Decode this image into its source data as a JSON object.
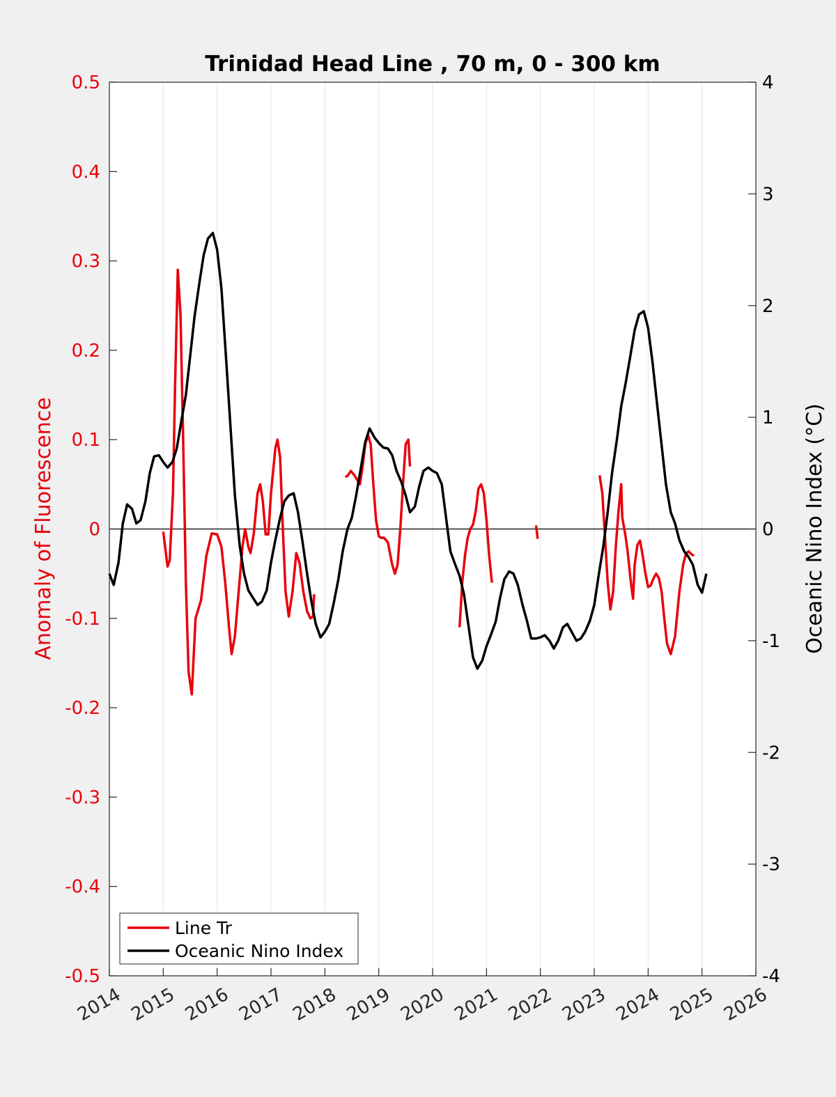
{
  "chart_data": {
    "type": "line",
    "title": "Trinidad Head Line , 70 m, 0 - 300 km",
    "ylabel_left": "Anomaly of Fluorescence",
    "ylabel_right": "Oceanic Nino Index (°C)",
    "xlim": [
      2014,
      2026
    ],
    "ylim_left": [
      -0.5,
      0.5
    ],
    "ylim_right": [
      -4,
      4
    ],
    "x_ticks": [
      "2014",
      "2015",
      "2016",
      "2017",
      "2018",
      "2019",
      "2020",
      "2021",
      "2022",
      "2023",
      "2024",
      "2025",
      "2026"
    ],
    "y_left_ticks": [
      "0.5",
      "0.4",
      "0.3",
      "0.2",
      "0.1",
      "0",
      "-0.1",
      "-0.2",
      "-0.3",
      "-0.4",
      "-0.5"
    ],
    "y_right_ticks": [
      "4",
      "3",
      "2",
      "1",
      "0",
      "-1",
      "-2",
      "-3",
      "-4"
    ],
    "grid": "vertical",
    "legend_position": "bottom-left",
    "series": [
      {
        "name": "Line Tr",
        "color": "#e8000b",
        "axis": "left",
        "segments": [
          [
            [
              2015.0,
              -0.003
            ],
            [
              2015.08,
              -0.042
            ],
            [
              2015.12,
              -0.035
            ],
            [
              2015.18,
              0.04
            ],
            [
              2015.22,
              0.16
            ],
            [
              2015.27,
              0.29
            ],
            [
              2015.32,
              0.24
            ],
            [
              2015.37,
              0.1
            ],
            [
              2015.42,
              -0.06
            ],
            [
              2015.47,
              -0.16
            ],
            [
              2015.53,
              -0.185
            ],
            [
              2015.6,
              -0.1
            ],
            [
              2015.7,
              -0.08
            ],
            [
              2015.8,
              -0.03
            ],
            [
              2015.9,
              -0.005
            ],
            [
              2016.0,
              -0.006
            ],
            [
              2016.08,
              -0.02
            ],
            [
              2016.15,
              -0.06
            ],
            [
              2016.22,
              -0.11
            ],
            [
              2016.27,
              -0.14
            ],
            [
              2016.33,
              -0.12
            ],
            [
              2016.4,
              -0.07
            ],
            [
              2016.47,
              -0.02
            ],
            [
              2016.52,
              0.0
            ],
            [
              2016.58,
              -0.02
            ],
            [
              2016.62,
              -0.027
            ],
            [
              2016.68,
              -0.005
            ],
            [
              2016.75,
              0.04
            ],
            [
              2016.8,
              0.05
            ],
            [
              2016.85,
              0.03
            ],
            [
              2016.9,
              -0.006
            ],
            [
              2016.95,
              -0.006
            ],
            [
              2017.0,
              0.04
            ],
            [
              2017.08,
              0.09
            ],
            [
              2017.12,
              0.1
            ],
            [
              2017.17,
              0.08
            ],
            [
              2017.22,
              0.0
            ],
            [
              2017.27,
              -0.07
            ],
            [
              2017.33,
              -0.098
            ],
            [
              2017.4,
              -0.07
            ],
            [
              2017.47,
              -0.027
            ],
            [
              2017.53,
              -0.038
            ],
            [
              2017.6,
              -0.07
            ],
            [
              2017.67,
              -0.092
            ],
            [
              2017.73,
              -0.1
            ],
            [
              2017.78,
              -0.098
            ],
            [
              2017.8,
              -0.073
            ]
          ],
          [
            [
              2018.38,
              0.058
            ],
            [
              2018.43,
              0.06
            ],
            [
              2018.48,
              0.065
            ],
            [
              2018.55,
              0.06
            ],
            [
              2018.6,
              0.055
            ],
            [
              2018.65,
              0.05
            ],
            [
              2018.7,
              0.07
            ],
            [
              2018.75,
              0.095
            ],
            [
              2018.8,
              0.105
            ],
            [
              2018.85,
              0.095
            ],
            [
              2018.9,
              0.05
            ],
            [
              2018.95,
              0.01
            ],
            [
              2019.0,
              -0.008
            ],
            [
              2019.05,
              -0.01
            ],
            [
              2019.1,
              -0.01
            ],
            [
              2019.17,
              -0.015
            ],
            [
              2019.25,
              -0.04
            ],
            [
              2019.3,
              -0.05
            ],
            [
              2019.35,
              -0.04
            ],
            [
              2019.4,
              0.0
            ],
            [
              2019.45,
              0.05
            ],
            [
              2019.5,
              0.095
            ],
            [
              2019.55,
              0.1
            ],
            [
              2019.58,
              0.07
            ]
          ],
          [
            [
              2020.5,
              -0.11
            ],
            [
              2020.55,
              -0.06
            ],
            [
              2020.6,
              -0.03
            ],
            [
              2020.65,
              -0.01
            ],
            [
              2020.7,
              0.0
            ],
            [
              2020.75,
              0.005
            ],
            [
              2020.8,
              0.02
            ],
            [
              2020.85,
              0.045
            ],
            [
              2020.9,
              0.05
            ],
            [
              2020.95,
              0.04
            ],
            [
              2021.0,
              0.01
            ],
            [
              2021.05,
              -0.03
            ],
            [
              2021.1,
              -0.06
            ]
          ],
          [
            [
              2021.92,
              0.004
            ],
            [
              2021.95,
              -0.011
            ]
          ],
          [
            [
              2023.1,
              0.06
            ],
            [
              2023.15,
              0.04
            ],
            [
              2023.2,
              -0.01
            ],
            [
              2023.25,
              -0.06
            ],
            [
              2023.3,
              -0.09
            ],
            [
              2023.35,
              -0.07
            ],
            [
              2023.4,
              -0.02
            ],
            [
              2023.45,
              0.02
            ],
            [
              2023.5,
              0.05
            ],
            [
              2023.52,
              0.013
            ],
            [
              2023.58,
              -0.008
            ],
            [
              2023.62,
              -0.025
            ],
            [
              2023.68,
              -0.06
            ],
            [
              2023.72,
              -0.078
            ],
            [
              2023.75,
              -0.04
            ],
            [
              2023.8,
              -0.018
            ],
            [
              2023.85,
              -0.013
            ],
            [
              2023.9,
              -0.03
            ],
            [
              2023.95,
              -0.05
            ],
            [
              2024.0,
              -0.065
            ],
            [
              2024.05,
              -0.063
            ],
            [
              2024.1,
              -0.055
            ],
            [
              2024.15,
              -0.05
            ],
            [
              2024.2,
              -0.055
            ],
            [
              2024.25,
              -0.07
            ],
            [
              2024.3,
              -0.1
            ],
            [
              2024.35,
              -0.128
            ],
            [
              2024.42,
              -0.14
            ],
            [
              2024.5,
              -0.12
            ],
            [
              2024.58,
              -0.07
            ],
            [
              2024.65,
              -0.04
            ],
            [
              2024.7,
              -0.028
            ],
            [
              2024.75,
              -0.025
            ],
            [
              2024.8,
              -0.028
            ],
            [
              2024.85,
              -0.03
            ]
          ]
        ]
      },
      {
        "name": "Oceanic Nino Index",
        "color": "#000000",
        "axis": "right",
        "segments": [
          [
            [
              2014.0,
              -0.4
            ],
            [
              2014.08,
              -0.5
            ],
            [
              2014.17,
              -0.3
            ],
            [
              2014.25,
              0.05
            ],
            [
              2014.33,
              0.22
            ],
            [
              2014.42,
              0.18
            ],
            [
              2014.5,
              0.05
            ],
            [
              2014.58,
              0.08
            ],
            [
              2014.67,
              0.25
            ],
            [
              2014.75,
              0.5
            ],
            [
              2014.83,
              0.65
            ],
            [
              2014.92,
              0.66
            ],
            [
              2015.0,
              0.6
            ],
            [
              2015.08,
              0.55
            ],
            [
              2015.17,
              0.6
            ],
            [
              2015.25,
              0.72
            ],
            [
              2015.33,
              0.95
            ],
            [
              2015.42,
              1.2
            ],
            [
              2015.5,
              1.55
            ],
            [
              2015.58,
              1.9
            ],
            [
              2015.67,
              2.2
            ],
            [
              2015.75,
              2.45
            ],
            [
              2015.83,
              2.6
            ],
            [
              2015.92,
              2.65
            ],
            [
              2016.0,
              2.5
            ],
            [
              2016.08,
              2.15
            ],
            [
              2016.17,
              1.5
            ],
            [
              2016.25,
              0.9
            ],
            [
              2016.33,
              0.3
            ],
            [
              2016.42,
              -0.15
            ],
            [
              2016.5,
              -0.4
            ],
            [
              2016.58,
              -0.55
            ],
            [
              2016.67,
              -0.62
            ],
            [
              2016.75,
              -0.68
            ],
            [
              2016.83,
              -0.65
            ],
            [
              2016.92,
              -0.55
            ],
            [
              2017.0,
              -0.3
            ],
            [
              2017.08,
              -0.1
            ],
            [
              2017.17,
              0.1
            ],
            [
              2017.25,
              0.25
            ],
            [
              2017.33,
              0.3
            ],
            [
              2017.42,
              0.32
            ],
            [
              2017.5,
              0.15
            ],
            [
              2017.58,
              -0.1
            ],
            [
              2017.67,
              -0.4
            ],
            [
              2017.75,
              -0.65
            ],
            [
              2017.83,
              -0.85
            ],
            [
              2017.92,
              -0.97
            ],
            [
              2018.0,
              -0.92
            ],
            [
              2018.08,
              -0.85
            ],
            [
              2018.17,
              -0.65
            ],
            [
              2018.25,
              -0.45
            ],
            [
              2018.33,
              -0.2
            ],
            [
              2018.42,
              0.0
            ],
            [
              2018.5,
              0.1
            ],
            [
              2018.58,
              0.3
            ],
            [
              2018.67,
              0.55
            ],
            [
              2018.75,
              0.78
            ],
            [
              2018.83,
              0.9
            ],
            [
              2018.92,
              0.82
            ],
            [
              2019.0,
              0.77
            ],
            [
              2019.08,
              0.73
            ],
            [
              2019.17,
              0.72
            ],
            [
              2019.25,
              0.66
            ],
            [
              2019.33,
              0.52
            ],
            [
              2019.42,
              0.42
            ],
            [
              2019.5,
              0.3
            ],
            [
              2019.58,
              0.15
            ],
            [
              2019.67,
              0.2
            ],
            [
              2019.75,
              0.38
            ],
            [
              2019.83,
              0.52
            ],
            [
              2019.92,
              0.55
            ],
            [
              2020.0,
              0.52
            ],
            [
              2020.08,
              0.5
            ],
            [
              2020.17,
              0.4
            ],
            [
              2020.25,
              0.1
            ],
            [
              2020.33,
              -0.2
            ],
            [
              2020.42,
              -0.32
            ],
            [
              2020.5,
              -0.42
            ],
            [
              2020.58,
              -0.58
            ],
            [
              2020.67,
              -0.88
            ],
            [
              2020.75,
              -1.15
            ],
            [
              2020.83,
              -1.25
            ],
            [
              2020.92,
              -1.18
            ],
            [
              2021.0,
              -1.05
            ],
            [
              2021.08,
              -0.95
            ],
            [
              2021.17,
              -0.83
            ],
            [
              2021.25,
              -0.62
            ],
            [
              2021.33,
              -0.45
            ],
            [
              2021.42,
              -0.38
            ],
            [
              2021.5,
              -0.4
            ],
            [
              2021.58,
              -0.5
            ],
            [
              2021.67,
              -0.68
            ],
            [
              2021.75,
              -0.82
            ],
            [
              2021.83,
              -0.98
            ],
            [
              2021.92,
              -0.98
            ],
            [
              2022.0,
              -0.97
            ],
            [
              2022.08,
              -0.95
            ],
            [
              2022.17,
              -1.0
            ],
            [
              2022.25,
              -1.07
            ],
            [
              2022.33,
              -1.0
            ],
            [
              2022.42,
              -0.88
            ],
            [
              2022.5,
              -0.85
            ],
            [
              2022.58,
              -0.92
            ],
            [
              2022.67,
              -1.0
            ],
            [
              2022.75,
              -0.98
            ],
            [
              2022.83,
              -0.92
            ],
            [
              2022.92,
              -0.82
            ],
            [
              2023.0,
              -0.68
            ],
            [
              2023.08,
              -0.42
            ],
            [
              2023.17,
              -0.15
            ],
            [
              2023.25,
              0.15
            ],
            [
              2023.33,
              0.5
            ],
            [
              2023.42,
              0.8
            ],
            [
              2023.5,
              1.1
            ],
            [
              2023.58,
              1.3
            ],
            [
              2023.67,
              1.55
            ],
            [
              2023.75,
              1.78
            ],
            [
              2023.83,
              1.92
            ],
            [
              2023.92,
              1.95
            ],
            [
              2024.0,
              1.8
            ],
            [
              2024.08,
              1.5
            ],
            [
              2024.17,
              1.1
            ],
            [
              2024.25,
              0.75
            ],
            [
              2024.33,
              0.4
            ],
            [
              2024.42,
              0.15
            ],
            [
              2024.5,
              0.05
            ],
            [
              2024.58,
              -0.1
            ],
            [
              2024.67,
              -0.2
            ],
            [
              2024.75,
              -0.25
            ],
            [
              2024.83,
              -0.32
            ],
            [
              2024.92,
              -0.5
            ],
            [
              2025.0,
              -0.57
            ],
            [
              2025.08,
              -0.4
            ]
          ]
        ]
      }
    ]
  }
}
